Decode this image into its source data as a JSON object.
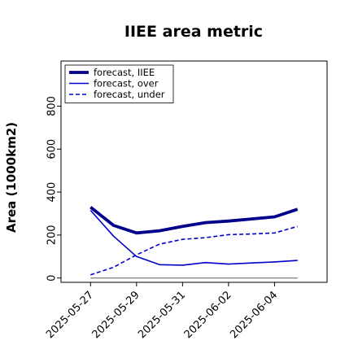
{
  "chart_data": {
    "type": "line",
    "title": "IIEE area metric",
    "xlabel": "",
    "ylabel": "Area (1000km2)",
    "x": [
      "2025-05-27",
      "2025-05-28",
      "2025-05-29",
      "2025-05-30",
      "2025-05-31",
      "2025-06-01",
      "2025-06-02",
      "2025-06-03",
      "2025-06-04",
      "2025-06-05"
    ],
    "x_tick_labels": [
      "2025-05-27",
      "2025-05-29",
      "2025-05-31",
      "2025-06-02",
      "2025-06-04"
    ],
    "x_tick_colors": [
      "#228B22",
      "#000000",
      "#000000",
      "#000000",
      "#000000"
    ],
    "ylim": [
      -20,
      1010
    ],
    "y_ticks": [
      0,
      200,
      400,
      600,
      800
    ],
    "grid": false,
    "legend_position": "top-left",
    "series": [
      {
        "name": "forecast, IIEE",
        "style": "solid-thick",
        "color": "#00008b",
        "values": [
          330,
          245,
          210,
          220,
          240,
          258,
          265,
          275,
          285,
          320
        ]
      },
      {
        "name": "forecast, over",
        "style": "solid",
        "color": "#0000cd",
        "values": [
          315,
          195,
          100,
          62,
          60,
          72,
          65,
          70,
          75,
          82
        ]
      },
      {
        "name": "forecast, under",
        "style": "dashed",
        "color": "#0000cd",
        "values": [
          15,
          50,
          108,
          158,
          180,
          188,
          202,
          205,
          210,
          240
        ]
      },
      {
        "name": "",
        "style": "baseline",
        "color": "#888888",
        "values": [
          0,
          0,
          0,
          0,
          0,
          0,
          0,
          0,
          0,
          0
        ]
      }
    ]
  }
}
